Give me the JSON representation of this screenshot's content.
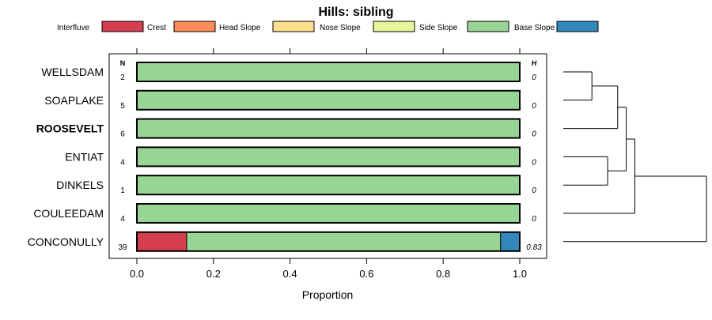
{
  "chart_data": {
    "type": "bar",
    "subtype": "stacked-horizontal-proportion",
    "title": "Hills: sibling",
    "xlabel": "Proportion",
    "ylabel": "",
    "xlim": [
      0,
      1
    ],
    "xticks": [
      0,
      0.2,
      0.4,
      0.6,
      0.8,
      1
    ],
    "xtick_labels": [
      "0.0",
      "0.2",
      "0.4",
      "0.6",
      "0.8",
      "1.0"
    ],
    "n_header": "N",
    "h_header": "H",
    "legend_position": "top",
    "legend": [
      {
        "name": "Interfluve",
        "color": "#D53E4F"
      },
      {
        "name": "Crest",
        "color": "#FC8D59"
      },
      {
        "name": "Head Slope",
        "color": "#FEE08B"
      },
      {
        "name": "Nose Slope",
        "color": "#E6F598"
      },
      {
        "name": "Side Slope",
        "color": "#99D594"
      },
      {
        "name": "Base Slope",
        "color": "#3288BD"
      }
    ],
    "categories": [
      "WELLSDAM",
      "SOAPLAKE",
      "ROOSEVELT",
      "ENTIAT",
      "DINKELS",
      "COULEEDAM",
      "CONCONULLY"
    ],
    "highlighted_category": "ROOSEVELT",
    "n": [
      "2",
      "5",
      "6",
      "4",
      "1",
      "4",
      "39"
    ],
    "h": [
      "0",
      "0",
      "0",
      "0",
      "0",
      "0",
      "0.83"
    ],
    "series": [
      {
        "name": "Interfluve",
        "values": [
          0,
          0,
          0,
          0,
          0,
          0,
          0.13
        ]
      },
      {
        "name": "Crest",
        "values": [
          0,
          0,
          0,
          0,
          0,
          0,
          0
        ]
      },
      {
        "name": "Head Slope",
        "values": [
          0,
          0,
          0,
          0,
          0,
          0,
          0
        ]
      },
      {
        "name": "Nose Slope",
        "values": [
          0,
          0,
          0,
          0,
          0,
          0,
          0
        ]
      },
      {
        "name": "Side Slope",
        "values": [
          1,
          1,
          1,
          1,
          1,
          1,
          0.82
        ]
      },
      {
        "name": "Base Slope",
        "values": [
          0,
          0,
          0,
          0,
          0,
          0,
          0.05
        ]
      }
    ],
    "dendrogram": {
      "leaves": [
        "WELLSDAM",
        "SOAPLAKE",
        "ROOSEVELT",
        "ENTIAT",
        "DINKELS",
        "COULEEDAM",
        "CONCONULLY"
      ],
      "merges": [
        {
          "left": "WELLSDAM",
          "right": "SOAPLAKE",
          "height": 1.0
        },
        {
          "left": "ENTIAT",
          "right": "DINKELS",
          "height": 1.55
        },
        {
          "left": "WELLSDAM+SOAPLAKE",
          "right": "ROOSEVELT",
          "height": 1.9
        },
        {
          "left": "WELLSDAM+SOAPLAKE+ROOSEVELT",
          "right": "ENTIAT+DINKELS",
          "height": 2.2
        },
        {
          "left": "WELLSDAM+SOAPLAKE+ROOSEVELT+ENTIAT+DINKELS",
          "right": "COULEEDAM",
          "height": 2.5
        },
        {
          "left": "ALL_BUT_CONCONULLY",
          "right": "CONCONULLY",
          "height": 5.0
        }
      ]
    }
  }
}
